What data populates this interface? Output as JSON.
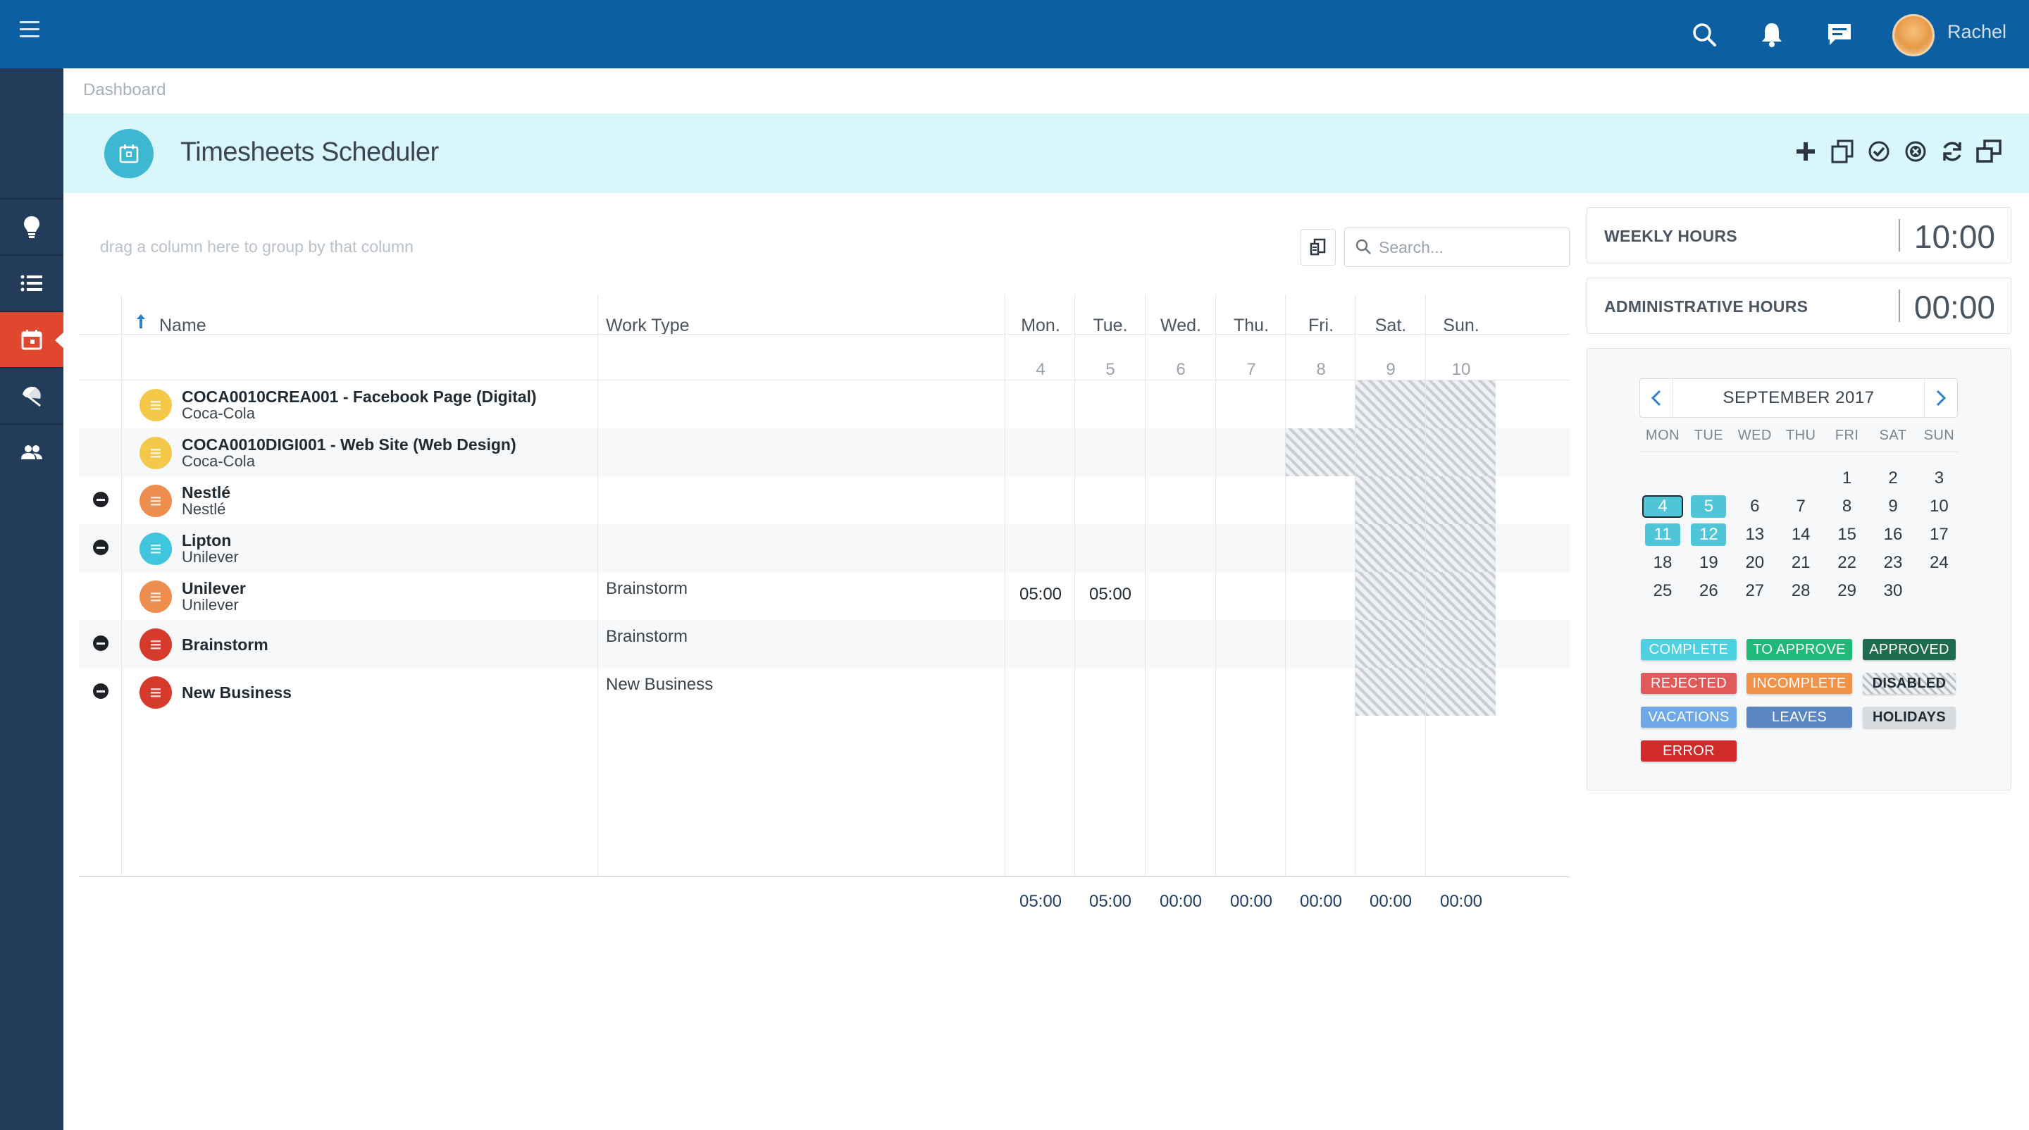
{
  "topbar": {
    "username": "Rachel",
    "icons": [
      "menu-icon",
      "search-icon",
      "bell-icon",
      "chat-icon",
      "avatar"
    ]
  },
  "sidebar": {
    "items": [
      {
        "icon": "lightbulb-icon"
      },
      {
        "icon": "list-icon"
      },
      {
        "icon": "calendar-icon",
        "active": true
      },
      {
        "icon": "umbrella-icon"
      },
      {
        "icon": "users-icon"
      }
    ]
  },
  "breadcrumb": "Dashboard",
  "header": {
    "title": "Timesheets Scheduler",
    "actions": [
      "add-icon",
      "copy-icon",
      "approve-icon",
      "reject-icon",
      "refresh-icon",
      "windows-icon"
    ]
  },
  "grid": {
    "group_hint": "drag a column here to group by that column",
    "search_placeholder": "Search...",
    "columns": {
      "name": "Name",
      "work_type": "Work Type"
    },
    "days": [
      {
        "label": "Mon.",
        "num": "4"
      },
      {
        "label": "Tue.",
        "num": "5"
      },
      {
        "label": "Wed.",
        "num": "6"
      },
      {
        "label": "Thu.",
        "num": "7"
      },
      {
        "label": "Fri.",
        "num": "8"
      },
      {
        "label": "Sat.",
        "num": "9"
      },
      {
        "label": "Sun.",
        "num": "10"
      }
    ],
    "rows": [
      {
        "name": "COCA0010CREA001 - Facebook Page (Digital)",
        "sub": "Coca-Cola",
        "work_type": "",
        "icon_color": "#f4c94a",
        "minus": false,
        "values": [
          "",
          "",
          "",
          "",
          "",
          "",
          ""
        ],
        "hatch": [
          5,
          6
        ]
      },
      {
        "name": "COCA0010DIGI001 - Web Site (Web Design)",
        "sub": "Coca-Cola",
        "work_type": "",
        "icon_color": "#f4c94a",
        "minus": false,
        "values": [
          "",
          "",
          "",
          "",
          "",
          "",
          ""
        ],
        "hatch": [
          4,
          5,
          6
        ]
      },
      {
        "name": "Nestlé",
        "sub": "Nestlé",
        "work_type": "",
        "icon_color": "#ee8e4e",
        "minus": true,
        "values": [
          "",
          "",
          "",
          "",
          "",
          "",
          ""
        ],
        "hatch": [
          5,
          6
        ]
      },
      {
        "name": "Lipton",
        "sub": "Unilever",
        "work_type": "",
        "icon_color": "#3fc6dc",
        "minus": true,
        "values": [
          "",
          "",
          "",
          "",
          "",
          "",
          ""
        ],
        "hatch": [
          5,
          6
        ]
      },
      {
        "name": "Unilever",
        "sub": "Unilever",
        "work_type": "Brainstorm",
        "icon_color": "#ee8e4e",
        "minus": false,
        "values": [
          "05:00",
          "05:00",
          "",
          "",
          "",
          "",
          ""
        ],
        "hatch": [
          5,
          6
        ]
      },
      {
        "name": "Brainstorm",
        "sub": "",
        "work_type": "Brainstorm",
        "icon_color": "#d63a2c",
        "minus": true,
        "values": [
          "",
          "",
          "",
          "",
          "",
          "",
          ""
        ],
        "hatch": [
          5,
          6
        ]
      },
      {
        "name": "New Business",
        "sub": "",
        "work_type": "New Business",
        "icon_color": "#d63a2c",
        "minus": true,
        "values": [
          "",
          "",
          "",
          "",
          "",
          "",
          ""
        ],
        "hatch": [
          5,
          6
        ]
      }
    ],
    "totals": [
      "05:00",
      "05:00",
      "00:00",
      "00:00",
      "00:00",
      "00:00",
      "00:00"
    ]
  },
  "hours": {
    "weekly_label": "WEEKLY HOURS",
    "weekly_value": "10:00",
    "admin_label": "ADMINISTRATIVE HOURS",
    "admin_value": "00:00"
  },
  "calendar": {
    "title": "SEPTEMBER 2017",
    "dow": [
      "MON",
      "TUE",
      "WED",
      "THU",
      "FRI",
      "SAT",
      "SUN"
    ],
    "weeks": [
      [
        "",
        "",
        "",
        "",
        "1",
        "2",
        "3"
      ],
      [
        "4",
        "5",
        "6",
        "7",
        "8",
        "9",
        "10"
      ],
      [
        "11",
        "12",
        "13",
        "14",
        "15",
        "16",
        "17"
      ],
      [
        "18",
        "19",
        "20",
        "21",
        "22",
        "23",
        "24"
      ],
      [
        "25",
        "26",
        "27",
        "28",
        "29",
        "30",
        ""
      ]
    ],
    "current": "4",
    "selected": [
      "5",
      "11",
      "12"
    ]
  },
  "legend": [
    {
      "label": "COMPLETE",
      "color": "#4fd0e0",
      "text": "#ffffff"
    },
    {
      "label": "TO APPROVE",
      "color": "#1fb97a",
      "text": "#ffffff"
    },
    {
      "label": "APPROVED",
      "color": "#1f6b4e",
      "text": "#ffffff"
    },
    {
      "label": "REJECTED",
      "color": "#e05a5a",
      "text": "#ffffff"
    },
    {
      "label": "INCOMPLETE",
      "color": "#f0924a",
      "text": "#ffffff"
    },
    {
      "label": "DISABLED",
      "color": "hatch",
      "text": "#1f2a33"
    },
    {
      "label": "VACATIONS",
      "color": "#6ea8e6",
      "text": "#ffffff"
    },
    {
      "label": "LEAVES",
      "color": "#5b86c4",
      "text": "#ffffff"
    },
    {
      "label": "HOLIDAYS",
      "color": "#d9dcdf",
      "text": "#1f2a33"
    },
    {
      "label": "ERROR",
      "color": "#d02a2a",
      "text": "#ffffff"
    }
  ],
  "colors": {
    "topbar": "#0d5fa3",
    "sidebar": "#223c5a",
    "active": "#e0472f",
    "header_bg": "#d9f6fb",
    "accent": "#3db8d3"
  }
}
